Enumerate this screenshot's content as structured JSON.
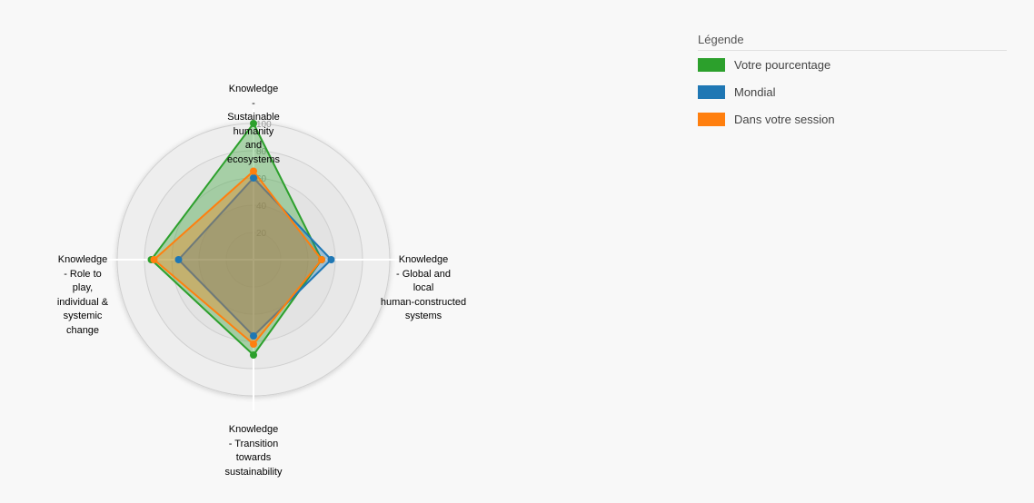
{
  "chart_data": {
    "type": "radar",
    "axes": [
      {
        "label_lines": [
          "Knowledge",
          "-",
          "Sustainable",
          "humanity",
          "and",
          "ecosystems"
        ]
      },
      {
        "label_lines": [
          "Knowledge",
          "- Global and",
          "local",
          "human-constructed",
          "systems"
        ]
      },
      {
        "label_lines": [
          "Knowledge",
          "- Transition",
          "towards",
          "sustainability"
        ]
      },
      {
        "label_lines": [
          "Knowledge",
          "- Role to",
          "play,",
          "individual &",
          "systemic",
          "change"
        ]
      }
    ],
    "ticks": [
      "20",
      "40",
      "60",
      "80",
      "100"
    ],
    "range": [
      0,
      100
    ],
    "series": [
      {
        "name": "Votre pourcentage",
        "color": "#2ca02c",
        "values": [
          100,
          50,
          70,
          75
        ]
      },
      {
        "name": "Mondial",
        "color": "#1f77b4",
        "values": [
          60,
          57,
          56,
          55
        ]
      },
      {
        "name": "Dans votre session",
        "color": "#ff7f0e",
        "values": [
          65,
          50,
          62,
          73
        ]
      }
    ]
  },
  "legend": {
    "title": "Légende",
    "items": [
      {
        "label": "Votre pourcentage",
        "color": "#2ca02c"
      },
      {
        "label": "Mondial",
        "color": "#1f77b4"
      },
      {
        "label": "Dans votre session",
        "color": "#ff7f0e"
      }
    ]
  }
}
